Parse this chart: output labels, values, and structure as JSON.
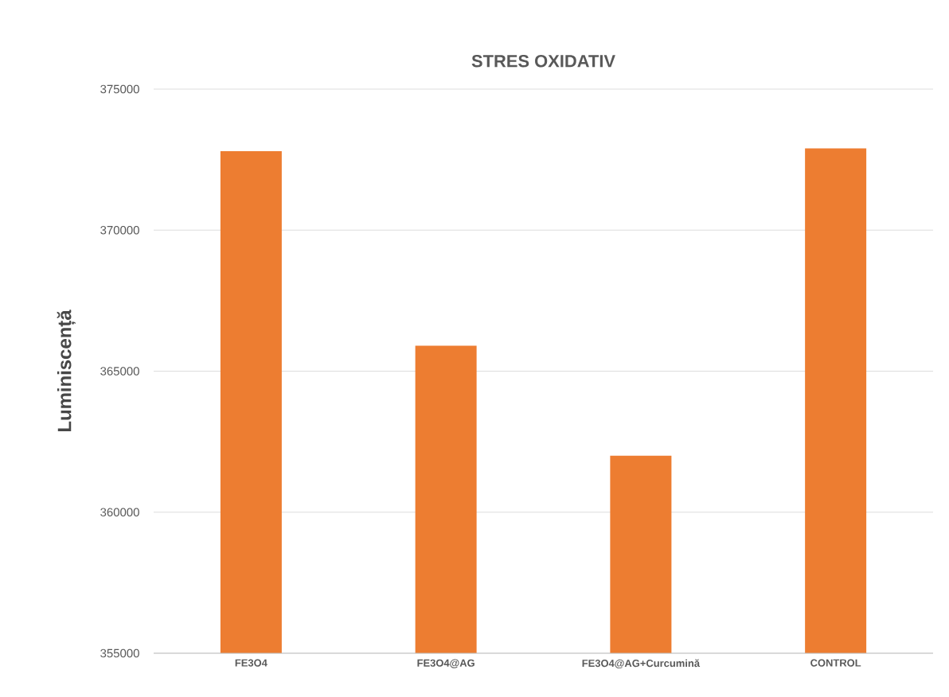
{
  "chart_data": {
    "type": "bar",
    "title": "STRES OXIDATIV",
    "ylabel": "Luminiscență",
    "categories": [
      "FE3O4",
      "FE3O4@AG",
      "FE3O4@AG+Curcumină",
      "CONTROL"
    ],
    "values": [
      372800,
      365900,
      362000,
      372900
    ],
    "color": "#ed7d31",
    "ylim": [
      355000,
      375000
    ],
    "yticks": [
      355000,
      360000,
      365000,
      370000,
      375000
    ],
    "grid": "y"
  }
}
